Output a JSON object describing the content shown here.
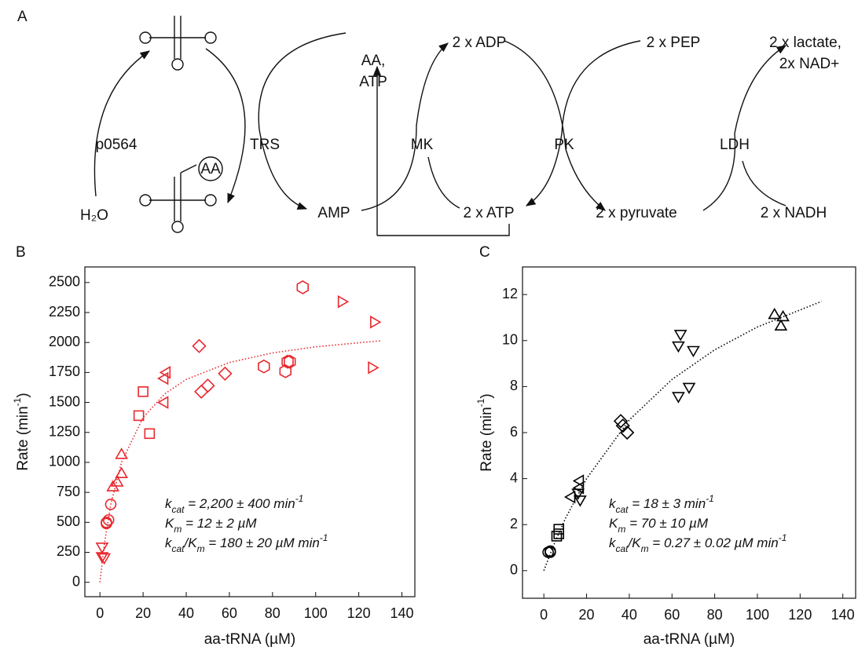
{
  "panel_labels": [
    "A",
    "B",
    "C"
  ],
  "diagram": {
    "labels": [
      "p0564",
      "H₂O",
      "TRS",
      "AA,",
      "ATP",
      "AMP",
      "MK",
      "2 x ADP",
      "2 x ATP",
      "PK",
      "2 x PEP",
      "2 x pyruvate",
      "LDH",
      "2 x lactate,",
      "2x NAD+",
      "2 x NADH"
    ],
    "trna_label": "AA"
  },
  "chart_data": [
    {
      "type": "scatter",
      "xlabel": "aa-tRNA (µM)",
      "ylabel": [
        {
          "t": "Rate (min"
        },
        {
          "t": "-1",
          "sup": true
        },
        {
          "t": ")"
        }
      ],
      "xlim": [
        -7,
        146
      ],
      "ylim": [
        -120,
        2630
      ],
      "xticks": [
        0,
        20,
        40,
        60,
        80,
        100,
        120,
        140
      ],
      "yticks": [
        0,
        250,
        500,
        750,
        1000,
        1250,
        1500,
        1750,
        2000,
        2250,
        2500
      ],
      "series": [
        {
          "marker": "circle",
          "color": "#e8282e",
          "x": [
            3,
            4,
            5,
            3
          ],
          "values": [
            500,
            520,
            650,
            490
          ]
        },
        {
          "marker": "triangle-down",
          "color": "#e8282e",
          "x": [
            1,
            1,
            2
          ],
          "values": [
            300,
            220,
            210
          ]
        },
        {
          "marker": "triangle-up",
          "color": "#e8282e",
          "x": [
            6,
            8,
            10,
            10
          ],
          "values": [
            790,
            830,
            900,
            1060
          ]
        },
        {
          "marker": "square",
          "color": "#e8282e",
          "x": [
            18,
            20,
            23
          ],
          "values": [
            1390,
            1590,
            1240
          ]
        },
        {
          "marker": "triangle-left",
          "color": "#e8282e",
          "x": [
            30,
            31,
            30
          ],
          "values": [
            1700,
            1750,
            1500
          ]
        },
        {
          "marker": "diamond",
          "color": "#e8282e",
          "x": [
            46,
            47,
            50,
            58
          ],
          "values": [
            1970,
            1590,
            1640,
            1740
          ]
        },
        {
          "marker": "hexagon",
          "color": "#e8282e",
          "x": [
            76,
            86,
            87,
            88,
            94
          ],
          "values": [
            1800,
            1760,
            1840,
            1840,
            2460
          ]
        },
        {
          "marker": "triangle-right",
          "color": "#e8282e",
          "x": [
            112,
            127,
            126
          ],
          "values": [
            2340,
            2170,
            1790
          ]
        }
      ],
      "fit": {
        "color": "#e8282e",
        "x": [
          0,
          2,
          5,
          10,
          20,
          30,
          40,
          60,
          80,
          100,
          130
        ],
        "values": [
          0,
          314,
          647,
          1000,
          1375,
          1571,
          1692,
          1833,
          1913,
          1964,
          2014
        ]
      },
      "annotation": [
        [
          {
            "t": "k"
          },
          {
            "t": "cat",
            "sub": true
          },
          {
            "t": " = 2,200 ± 400 min"
          },
          {
            "t": "-1",
            "sup": true
          }
        ],
        [
          {
            "t": "K"
          },
          {
            "t": "m",
            "sub": true
          },
          {
            "t": " = 12 ± 2 µM"
          }
        ],
        [
          {
            "t": "k"
          },
          {
            "t": "cat",
            "sub": true
          },
          {
            "t": "/K"
          },
          {
            "t": "m",
            "sub": true
          },
          {
            "t": " = 180 ± 20 µM min"
          },
          {
            "t": "-1",
            "sup": true
          }
        ]
      ]
    },
    {
      "type": "scatter",
      "xlabel": "aa-tRNA (µM)",
      "ylabel": [
        {
          "t": "Rate (min"
        },
        {
          "t": "-1",
          "sup": true
        },
        {
          "t": ")"
        }
      ],
      "xlim": [
        -10,
        146
      ],
      "ylim": [
        -1.2,
        13.2
      ],
      "xticks": [
        0,
        20,
        40,
        60,
        80,
        100,
        120,
        140
      ],
      "yticks": [
        0,
        2,
        4,
        6,
        8,
        10,
        12
      ],
      "series": [
        {
          "marker": "circle",
          "color": "#000000",
          "x": [
            2,
            3,
            3
          ],
          "values": [
            0.8,
            0.85,
            0.8
          ]
        },
        {
          "marker": "square",
          "color": "#000000",
          "x": [
            6,
            7,
            7
          ],
          "values": [
            1.5,
            1.8,
            1.6
          ]
        },
        {
          "marker": "triangle-left",
          "color": "#000000",
          "x": [
            13,
            17,
            17
          ],
          "values": [
            3.2,
            3.9,
            3.6
          ]
        },
        {
          "marker": "triangle-down",
          "color": "#000000",
          "x": [
            17,
            16
          ],
          "values": [
            3.1,
            3.4
          ]
        },
        {
          "marker": "diamond",
          "color": "#000000",
          "x": [
            36,
            37,
            39
          ],
          "values": [
            6.5,
            6.3,
            6.0
          ]
        },
        {
          "marker": "triangle-down",
          "color": "#000000",
          "x": [
            63,
            68,
            63,
            64,
            70
          ],
          "values": [
            7.6,
            8.0,
            9.8,
            10.3,
            9.6
          ]
        },
        {
          "marker": "triangle-up",
          "color": "#000000",
          "x": [
            108,
            111,
            112
          ],
          "values": [
            11.1,
            10.6,
            11.0
          ]
        }
      ],
      "fit": {
        "color": "#000000",
        "x": [
          0,
          5,
          10,
          20,
          40,
          60,
          80,
          100,
          130
        ],
        "values": [
          0,
          1.2,
          2.25,
          4,
          6.55,
          8.31,
          9.6,
          10.59,
          11.7
        ]
      },
      "annotation": [
        [
          {
            "t": "k"
          },
          {
            "t": "cat",
            "sub": true
          },
          {
            "t": " = 18 ± 3 min"
          },
          {
            "t": "-1",
            "sup": true
          }
        ],
        [
          {
            "t": "K"
          },
          {
            "t": "m",
            "sub": true
          },
          {
            "t": " = 70 ± 10 µM"
          }
        ],
        [
          {
            "t": "k"
          },
          {
            "t": "cat",
            "sub": true
          },
          {
            "t": "/K"
          },
          {
            "t": "m",
            "sub": true
          },
          {
            "t": " = 0.27 ± 0.02 µM min"
          },
          {
            "t": "-1",
            "sup": true
          }
        ]
      ]
    }
  ]
}
